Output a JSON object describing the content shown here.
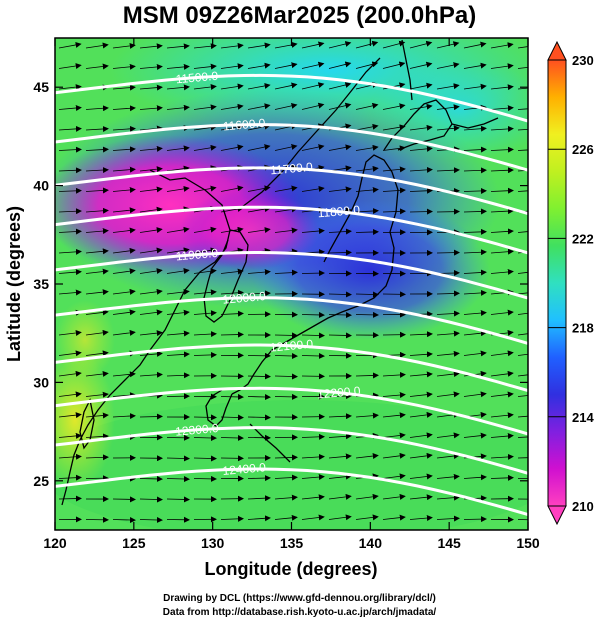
{
  "title": "MSM 09Z26Mar2025 (200.0hPa)",
  "xaxis": {
    "label": "Longitude (degrees)",
    "range": [
      120,
      150
    ],
    "ticks": [
      "120",
      "125",
      "130",
      "135",
      "140",
      "145",
      "150"
    ]
  },
  "yaxis": {
    "label": "Latitude  (degrees)",
    "range": [
      22.5,
      47.5
    ],
    "ticks": [
      "25",
      "30",
      "35",
      "40",
      "45"
    ]
  },
  "colorbar": {
    "range": [
      210,
      230
    ],
    "ticks": [
      "210",
      "214",
      "218",
      "222",
      "226",
      "230"
    ],
    "colors": [
      "#ff40c0",
      "#d010d0",
      "#8020e0",
      "#3030e0",
      "#2060ff",
      "#20c0ff",
      "#30e0c0",
      "#40e060",
      "#80f030",
      "#c0f020",
      "#f0f020",
      "#ffb000",
      "#ff5020"
    ]
  },
  "contours": [
    {
      "label": "11500.0",
      "lat": 44.0
    },
    {
      "label": "11600.0",
      "lat": 41.5
    },
    {
      "label": "11700.0",
      "lat": 39.3
    },
    {
      "label": "11800.0",
      "lat": 37.3
    },
    {
      "label": "11900.0",
      "lat": 35.0
    },
    {
      "label": "12000.0",
      "lat": 32.7
    },
    {
      "label": "12100.0",
      "lat": 30.3
    },
    {
      "label": "12200.0",
      "lat": 28.1
    },
    {
      "label": "12300.0",
      "lat": 26.1
    },
    {
      "label": "12400.0",
      "lat": 24.0
    }
  ],
  "credits": [
    "Drawing by DCL (https://www.gfd-dennou.org/library/dcl/)",
    "Data from http://database.rish.kyoto-u.ac.jp/arch/jmadata/"
  ]
}
